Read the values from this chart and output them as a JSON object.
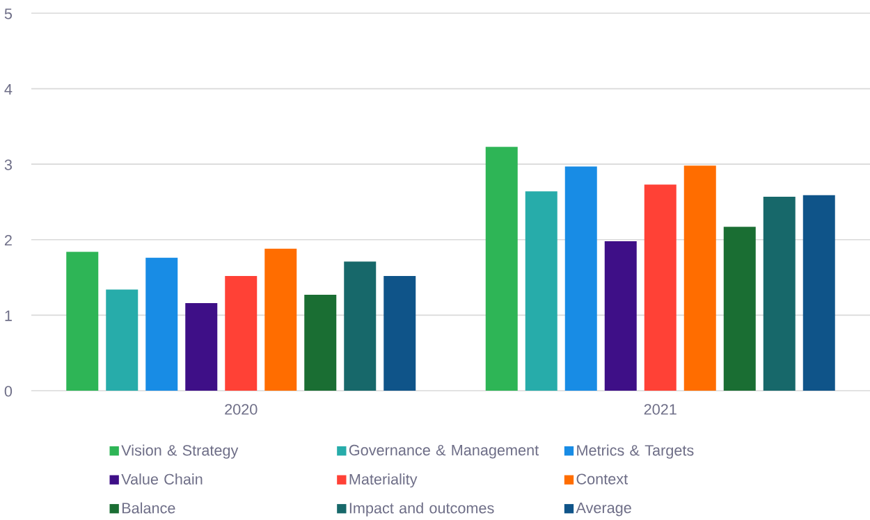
{
  "chart_data": {
    "type": "bar",
    "categories": [
      "2020",
      "2021"
    ],
    "series": [
      {
        "name": "Vision & Strategy",
        "color": "#2eb556",
        "values": [
          1.84,
          3.23
        ]
      },
      {
        "name": "Governance &  Management",
        "color": "#27acaa",
        "values": [
          1.34,
          2.64
        ]
      },
      {
        "name": "Metrics & Targets",
        "color": "#188ce5",
        "values": [
          1.76,
          2.97
        ]
      },
      {
        "name": "Value Chain",
        "color": "#3e0f87",
        "values": [
          1.16,
          1.98
        ]
      },
      {
        "name": "Materiality",
        "color": "#ff4136",
        "values": [
          1.52,
          2.73
        ]
      },
      {
        "name": "Context",
        "color": "#ff6d00",
        "values": [
          1.88,
          2.98
        ]
      },
      {
        "name": "Balance",
        "color": "#1a6e33",
        "values": [
          1.27,
          2.17
        ]
      },
      {
        "name": "Impact and outcomes",
        "color": "#17686a",
        "values": [
          1.71,
          2.57
        ]
      },
      {
        "name": "Average",
        "color": "#0f5489",
        "values": [
          1.52,
          2.59
        ]
      }
    ],
    "ylim": [
      0,
      5
    ],
    "yticks": [
      0,
      1,
      2,
      3,
      4,
      5
    ],
    "grid": "y",
    "legend": "bottom"
  }
}
